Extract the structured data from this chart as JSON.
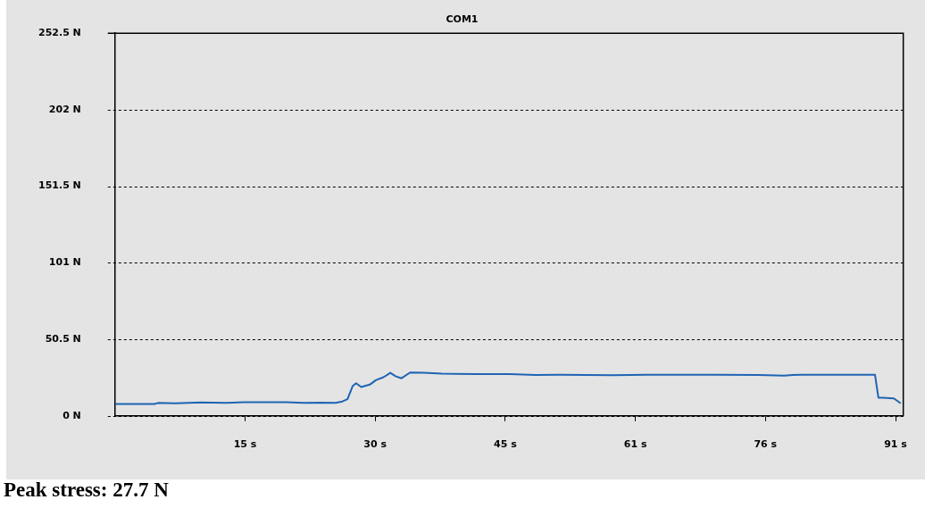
{
  "chart_data": {
    "type": "line",
    "title": "COM1",
    "annotations": [
      "Peak stress: 27.7 N"
    ],
    "x": [
      0,
      4.6,
      5,
      7,
      10,
      13,
      15,
      18,
      20,
      22,
      24,
      25.7,
      26.5,
      27.1,
      27.7,
      28.1,
      28.7,
      29.7,
      30.4,
      31.3,
      32.1,
      32.7,
      33.4,
      34.4,
      36,
      38.1,
      42,
      46,
      49,
      52,
      58,
      62,
      66,
      70,
      75,
      78,
      79,
      80,
      84,
      88.6,
      89,
      89.5,
      90.8,
      91.6
    ],
    "series": [
      {
        "color": "#1f64b4",
        "values": [
          7.8,
          7.8,
          8.5,
          8.3,
          8.8,
          8.5,
          9.0,
          9.0,
          9.0,
          8.5,
          8.7,
          8.6,
          9.5,
          11,
          19.6,
          21.5,
          19,
          20.6,
          23.5,
          25.5,
          28.4,
          26.2,
          24.8,
          28.6,
          28.4,
          27.8,
          27.5,
          27.5,
          27.0,
          27.2,
          26.9,
          27.1,
          27.2,
          27.2,
          27.0,
          26.6,
          27.0,
          27.2,
          27.2,
          27.2,
          12,
          12,
          11.5,
          8.3
        ]
      }
    ],
    "xlim": [
      0,
      91.9
    ],
    "ylim": [
      0,
      252.5
    ],
    "xticks": [
      {
        "value": 15.17,
        "label": "15 s"
      },
      {
        "value": 30.33,
        "label": "30 s"
      },
      {
        "value": 45.5,
        "label": "45 s"
      },
      {
        "value": 60.67,
        "label": "61 s"
      },
      {
        "value": 75.83,
        "label": "76 s"
      },
      {
        "value": 91,
        "label": "91 s"
      }
    ],
    "yticks": [
      {
        "value": 0,
        "label": "0 N"
      },
      {
        "value": 50.5,
        "label": "50.5 N"
      },
      {
        "value": 101,
        "label": "101 N"
      },
      {
        "value": 151.5,
        "label": "151.5 N"
      },
      {
        "value": 202,
        "label": "202 N"
      },
      {
        "value": 252.5,
        "label": "252.5 N"
      }
    ],
    "grid": "y",
    "legend": false,
    "marker": "none",
    "line_style": "solid"
  }
}
